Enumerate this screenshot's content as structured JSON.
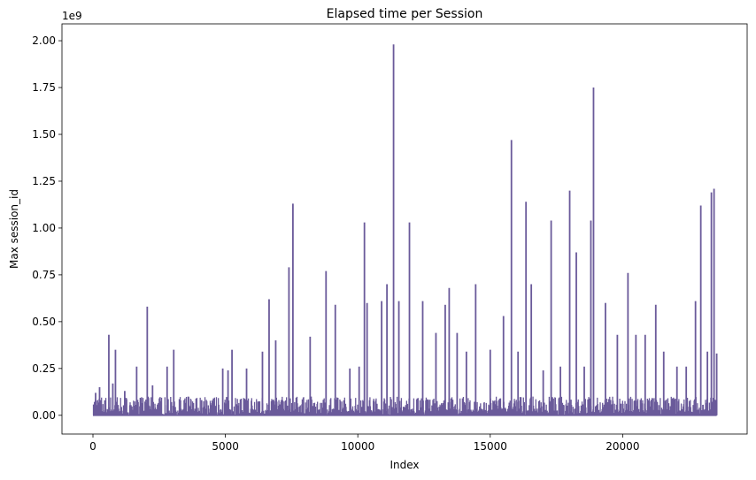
{
  "chart_data": {
    "type": "line",
    "title": "Elapsed time per Session",
    "xlabel": "Index",
    "ylabel": "Max session_id",
    "offset_label": "1e9",
    "xlim": [
      -1170,
      24700
    ],
    "ylim": [
      -0.1,
      2.09
    ],
    "x_ticks": [
      0,
      5000,
      10000,
      15000,
      20000
    ],
    "x_tick_labels": [
      "0",
      "5000",
      "10000",
      "15000",
      "20000"
    ],
    "y_ticks": [
      0.0,
      0.25,
      0.5,
      0.75,
      1.0,
      1.25,
      1.5,
      1.75,
      2.0
    ],
    "y_tick_labels": [
      "0.00",
      "0.25",
      "0.50",
      "0.75",
      "1.00",
      "1.25",
      "1.50",
      "1.75",
      "2.00"
    ],
    "grid": false,
    "line_color": "#6a5a9a",
    "series": [
      {
        "x": [
          0,
          100,
          250,
          450,
          600,
          750,
          850,
          1200,
          1650,
          2050,
          2250,
          2800,
          3050,
          3600,
          4100,
          4550,
          4900,
          5100,
          5250,
          5800,
          6400,
          6650,
          6900,
          7400,
          7550,
          8200,
          8800,
          9150,
          9700,
          10050,
          10250,
          10350,
          10900,
          11100,
          11350,
          11550,
          11950,
          12450,
          12950,
          13300,
          13450,
          13750,
          14100,
          14450,
          15000,
          15500,
          15800,
          16050,
          16350,
          16550,
          17000,
          17300,
          17650,
          18000,
          18250,
          18550,
          18800,
          18900,
          19350,
          19800,
          20200,
          20500,
          20850,
          21250,
          21550,
          22050,
          22400,
          22750,
          22950,
          23200,
          23350,
          23450,
          23550
        ],
        "y": [
          0.0,
          0.12,
          0.15,
          0.08,
          0.43,
          0.17,
          0.35,
          0.13,
          0.26,
          0.58,
          0.16,
          0.26,
          0.35,
          0.1,
          0.08,
          0.09,
          0.25,
          0.24,
          0.35,
          0.25,
          0.34,
          0.62,
          0.4,
          0.79,
          1.13,
          0.42,
          0.77,
          0.59,
          0.25,
          0.26,
          1.03,
          0.6,
          0.61,
          0.7,
          1.98,
          0.61,
          1.03,
          0.61,
          0.44,
          0.59,
          0.68,
          0.44,
          0.34,
          0.7,
          0.35,
          0.53,
          1.47,
          0.34,
          1.14,
          0.7,
          0.24,
          1.04,
          0.26,
          1.2,
          0.87,
          0.26,
          1.04,
          1.75,
          0.6,
          0.43,
          0.76,
          0.43,
          0.43,
          0.59,
          0.34,
          0.26,
          0.26,
          0.61,
          1.12,
          0.34,
          1.19,
          1.21,
          0.33
        ]
      }
    ]
  }
}
